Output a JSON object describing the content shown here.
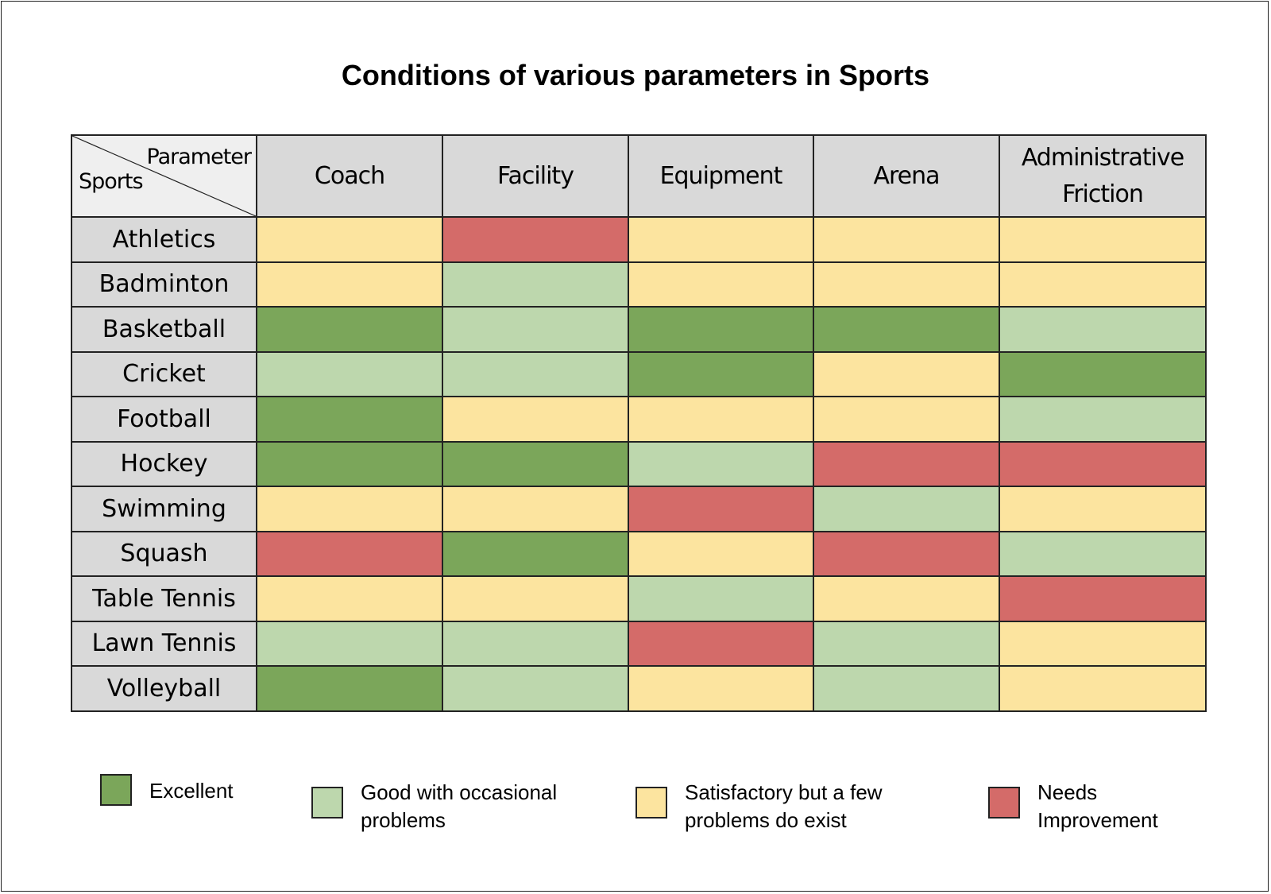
{
  "chart_data": {
    "type": "heatmap",
    "title": "Conditions of various parameters in Sports",
    "corner": {
      "column_label": "Parameter",
      "row_label": "Sports"
    },
    "columns": [
      "Coach",
      "Facility",
      "Equipment",
      "Arena",
      "Administrative Friction"
    ],
    "rows": [
      "Athletics",
      "Badminton",
      "Basketball",
      "Cricket",
      "Football",
      "Hockey",
      "Swimming",
      "Squash",
      "Table Tennis",
      "Lawn Tennis",
      "Volleyball"
    ],
    "values": [
      [
        "Satisfactory",
        "Needs Improvement",
        "Satisfactory",
        "Satisfactory",
        "Satisfactory"
      ],
      [
        "Satisfactory",
        "Good",
        "Satisfactory",
        "Satisfactory",
        "Satisfactory"
      ],
      [
        "Excellent",
        "Good",
        "Excellent",
        "Excellent",
        "Good"
      ],
      [
        "Good",
        "Good",
        "Excellent",
        "Satisfactory",
        "Excellent"
      ],
      [
        "Excellent",
        "Satisfactory",
        "Satisfactory",
        "Satisfactory",
        "Good"
      ],
      [
        "Excellent",
        "Excellent",
        "Good",
        "Needs Improvement",
        "Needs Improvement"
      ],
      [
        "Satisfactory",
        "Satisfactory",
        "Needs Improvement",
        "Good",
        "Satisfactory"
      ],
      [
        "Needs Improvement",
        "Excellent",
        "Satisfactory",
        "Needs Improvement",
        "Good"
      ],
      [
        "Satisfactory",
        "Satisfactory",
        "Good",
        "Satisfactory",
        "Needs Improvement"
      ],
      [
        "Good",
        "Good",
        "Needs Improvement",
        "Good",
        "Satisfactory"
      ],
      [
        "Excellent",
        "Good",
        "Satisfactory",
        "Good",
        "Satisfactory"
      ]
    ],
    "legend": [
      {
        "key": "Excellent",
        "label": "Excellent",
        "color": "#7ba65a"
      },
      {
        "key": "Good",
        "label": "Good with occasional problems",
        "color": "#bdd7ad"
      },
      {
        "key": "Satisfactory",
        "label": "Satisfactory but a few problems do exist",
        "color": "#fce49f"
      },
      {
        "key": "Needs Improvement",
        "label": "Needs Improvement",
        "color": "#d46b69"
      }
    ],
    "legend_placement": "bottom"
  },
  "colors": {
    "header_bg": "#d9d9d9",
    "corner_bg": "#efefef"
  }
}
